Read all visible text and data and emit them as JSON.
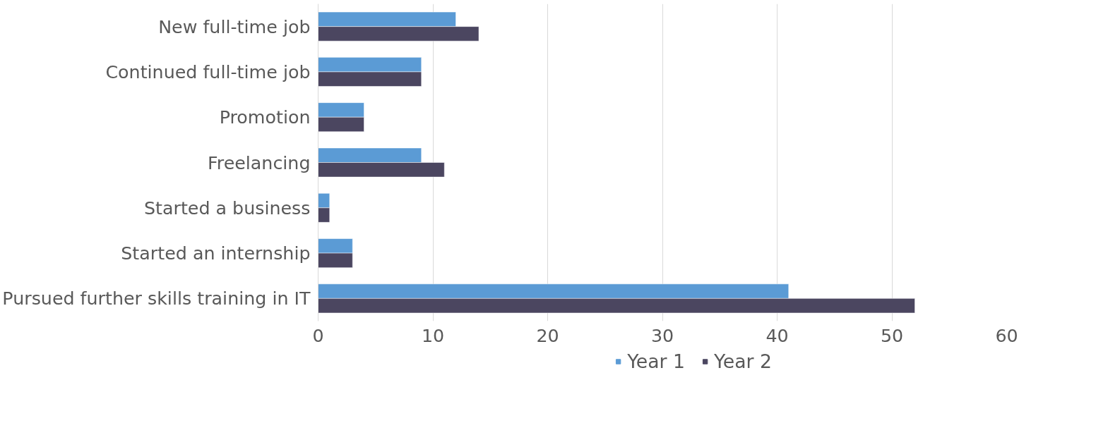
{
  "chart_data": {
    "type": "bar",
    "orientation": "horizontal",
    "categories": [
      "New full-time job",
      "Continued full-time job",
      "Promotion",
      "Freelancing",
      "Started a business",
      "Started an internship",
      "Pursued further skills training in IT"
    ],
    "series": [
      {
        "name": "Year 1",
        "color": "#5b9bd5",
        "values": [
          12,
          9,
          4,
          9,
          1,
          3,
          41
        ]
      },
      {
        "name": "Year 2",
        "color": "#4b4660",
        "values": [
          14,
          9,
          4,
          11,
          1,
          3,
          52
        ]
      }
    ],
    "xlim": [
      0,
      60
    ],
    "xticks": [
      0,
      10,
      20,
      30,
      40,
      50,
      60
    ],
    "grid": "x",
    "legend": "bottom"
  }
}
